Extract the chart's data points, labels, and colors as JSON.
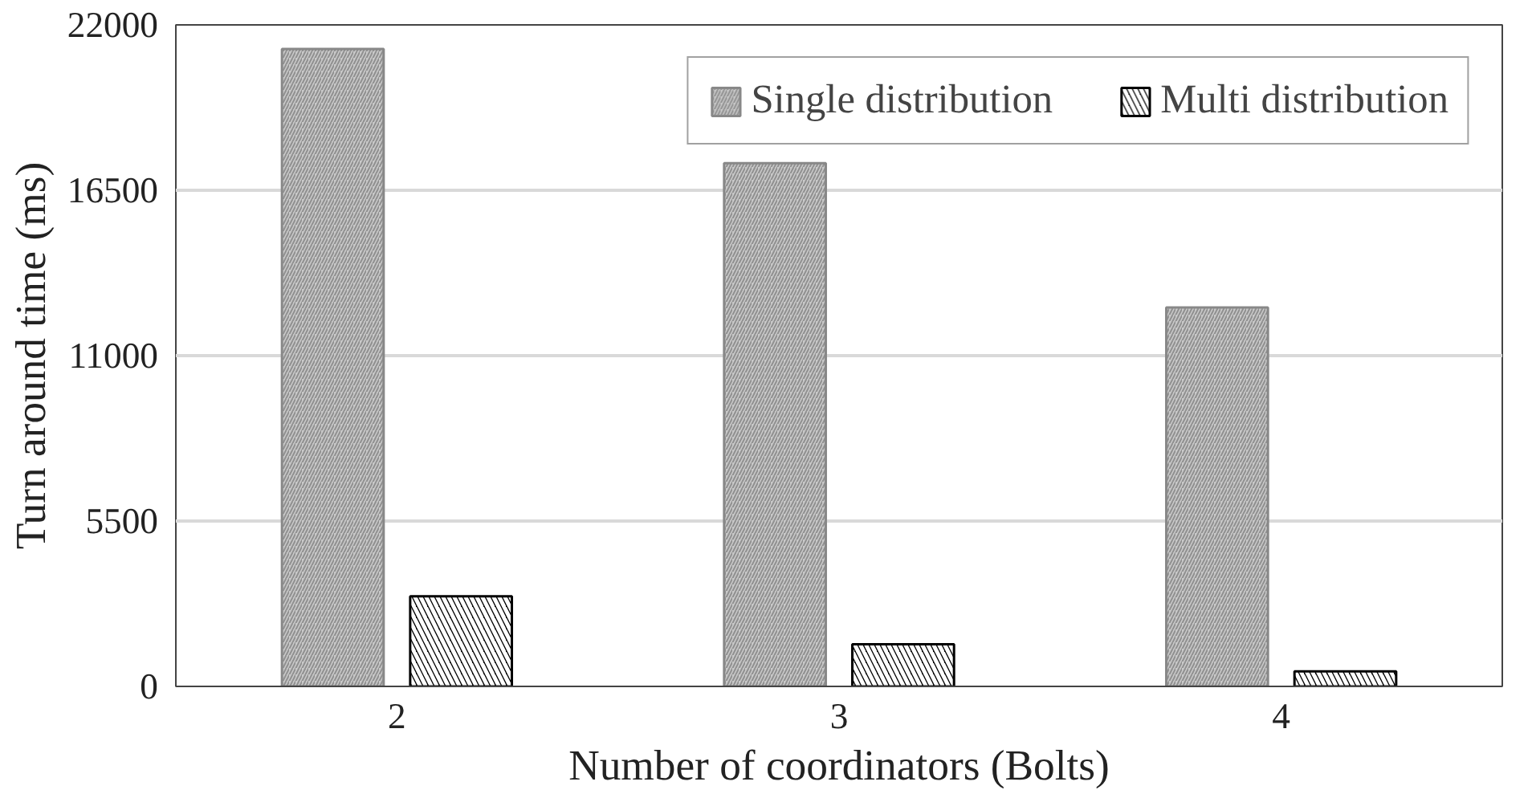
{
  "chart_data": {
    "type": "bar",
    "xlabel": "Number of coordinators (Bolts)",
    "ylabel": "Turn around time (ms)",
    "categories": [
      "2",
      "3",
      "4"
    ],
    "series": [
      {
        "name": "Single distribution",
        "color": "#c8c8c8",
        "values": [
          21200,
          17400,
          12600
        ]
      },
      {
        "name": "Multi distribution",
        "color": "#000000",
        "values": [
          3000,
          1400,
          500
        ]
      }
    ],
    "ylim": [
      0,
      22000
    ],
    "yticks": [
      0,
      5500,
      11000,
      16500,
      22000
    ],
    "grid": "y",
    "legend": "top right"
  }
}
